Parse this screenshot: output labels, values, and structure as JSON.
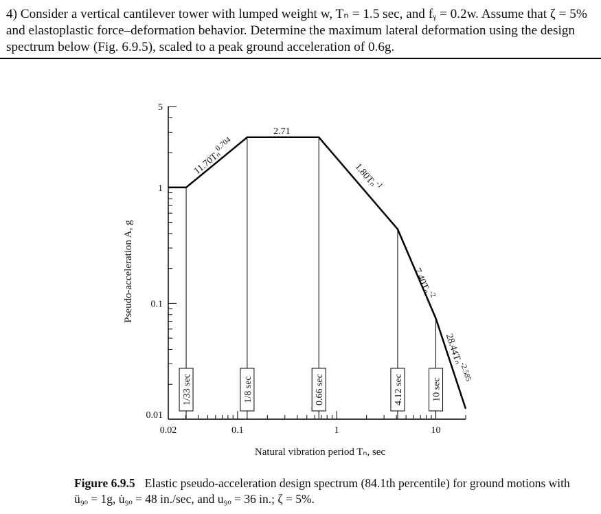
{
  "problem": {
    "text": "4) Consider a vertical cantilever tower with lumped weight w, Tₙ = 1.5 sec, and fᵧ = 0.2w. Assume that ζ = 5% and elastoplastic force–deformation behavior. Determine the maximum lateral deformation using the design spectrum below (Fig. 6.9.5), scaled to a peak ground acceleration of 0.6g."
  },
  "chart_data": {
    "type": "line",
    "title": "",
    "xlabel": "Natural vibration period Tₙ, sec",
    "ylabel": "Pseudo-acceleration A, g",
    "xscale": "log",
    "yscale": "log",
    "xlim": [
      0.02,
      20
    ],
    "ylim": [
      0.01,
      5
    ],
    "grid": false,
    "x_ticks": [
      {
        "value": 0.02,
        "label": "0.02"
      },
      {
        "value": 0.1,
        "label": "0.1"
      },
      {
        "value": 1,
        "label": "1"
      },
      {
        "value": 10,
        "label": "10"
      }
    ],
    "y_ticks": [
      {
        "value": 0.01,
        "label": "0.01"
      },
      {
        "value": 0.1,
        "label": "0.1"
      },
      {
        "value": 1,
        "label": "1"
      },
      {
        "value": 5,
        "label": "5"
      }
    ],
    "series": [
      {
        "x": [
          0.02,
          0.0303,
          0.125,
          0.66,
          4.12,
          10,
          20
        ],
        "y": [
          1,
          1,
          2.71,
          2.71,
          0.436,
          0.074,
          0.0123
        ]
      }
    ],
    "period_markers": [
      {
        "x": 0.0303,
        "label": "1/33 sec"
      },
      {
        "x": 0.125,
        "label": "1/8 sec"
      },
      {
        "x": 0.66,
        "label": "0.66 sec"
      },
      {
        "x": 4.12,
        "label": "4.12 sec"
      },
      {
        "x": 10,
        "label": "10 sec"
      }
    ],
    "segment_labels": [
      {
        "label": "11.70Tₙ",
        "exp": "0.704",
        "x": 0.06,
        "y": 1.75
      },
      {
        "label": "2.71",
        "x": 0.28,
        "y": 2.9
      },
      {
        "label": "1.80Tₙ",
        "exp": "-1",
        "x": 1.95,
        "y": 1.18
      },
      {
        "label": "7.40Tₙ",
        "exp": "-2",
        "x": 7.05,
        "y": 0.145
      },
      {
        "label": "28.44Tₙ",
        "exp": "-2.585",
        "x": 15.3,
        "y": 0.033
      }
    ]
  },
  "caption": {
    "figure": "Figure 6.9.5",
    "text": "Elastic pseudo-acceleration design spectrum (84.1th percentile) for ground motions with ü₉ₒ = 1g, u̇₉ₒ = 48 in./sec, and u₉ₒ = 36 in.; ζ = 5%."
  }
}
